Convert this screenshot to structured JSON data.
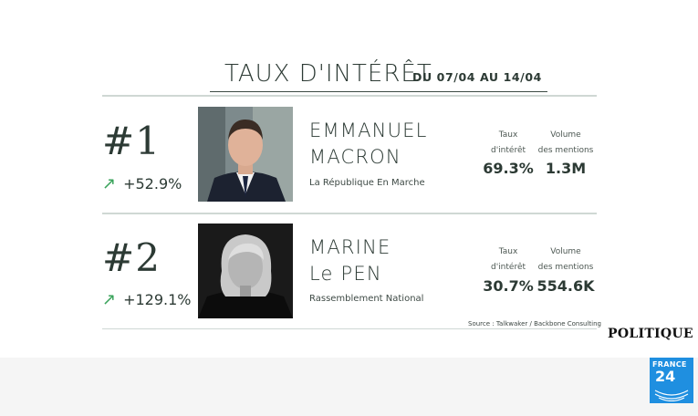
{
  "header": {
    "title": "TAUX D'INTÉRÊT",
    "subtitle": "DU 07/04 AU 14/04"
  },
  "candidates": [
    {
      "rank": "#1",
      "delta": "+52.9%",
      "name_line1": "EMMANUEL",
      "name_line2": "MACRON",
      "party": "La République En Marche",
      "interest_label": [
        "Taux",
        "d'intérêt"
      ],
      "interest": "69.3%",
      "mentions_label": [
        "Volume",
        "des mentions"
      ],
      "mentions": "1.3M"
    },
    {
      "rank": "#2",
      "delta": "+129.1%",
      "name_line1": "MARINE",
      "name_line2": "Le PEN",
      "party": "Rassemblement National",
      "interest_label": [
        "Taux",
        "d'intérêt"
      ],
      "interest": "30.7%",
      "mentions_label": [
        "Volume",
        "des mentions"
      ],
      "mentions": "554.6K"
    }
  ],
  "source": "Source : Talkwaker / Backbone Consulting",
  "broadcast": {
    "section": "POLITIQUE",
    "channel_line1": "FRANCE",
    "channel_line2": "24"
  },
  "colors": {
    "text": "#2c3a34",
    "arrow_up": "#3aa35b",
    "rule": "#cfd8d4",
    "logo_bg": "#1f8fe0"
  },
  "icons": {
    "trend": "arrow-up-right-icon"
  }
}
